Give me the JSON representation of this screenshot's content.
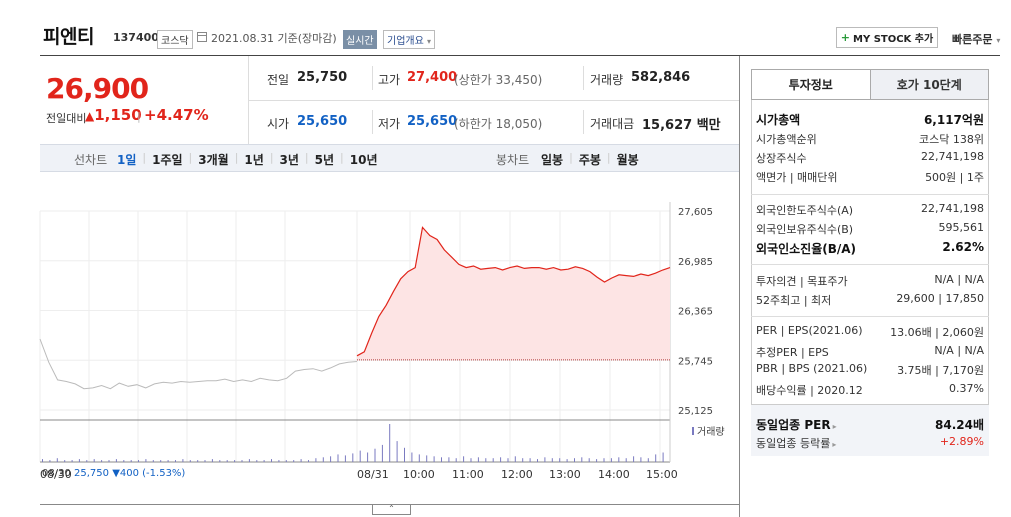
{
  "header": {
    "name": "피엔티",
    "code": "137400",
    "market": "코스닥",
    "date": "2021.08.31 기준(장마감)",
    "realtime": "실시간",
    "overview": "기업개요",
    "mystock": "MY STOCK 추가",
    "quick_order": "빠른주문"
  },
  "price": {
    "current": "26,900",
    "change_label": "전일대비",
    "change_abs": "1,150",
    "change_pct": "+4.47%"
  },
  "stats": {
    "prev_close_label": "전일",
    "prev_close": "25,750",
    "high_label": "고가",
    "high": "27,400",
    "upper_limit": "(상한가 33,450)",
    "volume_label": "거래량",
    "volume": "582,846",
    "open_label": "시가",
    "open": "25,650",
    "low_label": "저가",
    "low": "25,650",
    "lower_limit": "(하한가 18,050)",
    "amount_label": "거래대금",
    "amount": "15,627",
    "amount_unit": "백만"
  },
  "period_bar": {
    "line_label": "선차트",
    "periods": [
      "1일",
      "1주일",
      "3개월",
      "1년",
      "3년",
      "5년",
      "10년"
    ],
    "candle_label": "봉차트",
    "candles": [
      "일봉",
      "주봉",
      "월봉"
    ]
  },
  "chart_data": {
    "type": "line",
    "y_ticks": [
      "27,605",
      "26,985",
      "26,365",
      "25,745",
      "25,125"
    ],
    "ylim": [
      25125,
      27605
    ],
    "x_ticks": [
      "08/30",
      "08/31",
      "10:00",
      "11:00",
      "12:00",
      "13:00",
      "14:00",
      "15:00"
    ],
    "volume_label": "거래량",
    "prev_close": 25750,
    "colors": {
      "today": "#e1251b",
      "today_fill": "#fde4e4",
      "prev": "#bbbbbb",
      "volume": "#7a7ac0"
    },
    "prev_day": [
      26010,
      25720,
      25500,
      25480,
      25450,
      25390,
      25400,
      25430,
      25390,
      25460,
      25420,
      25440,
      25400,
      25450,
      25470,
      25460,
      25480,
      25470,
      25480,
      25490,
      25490,
      25510,
      25480,
      25500,
      25480,
      25520,
      25500,
      25490,
      25520,
      25610,
      25630,
      25640,
      25610,
      25650,
      25700,
      25720,
      25730
    ],
    "today": [
      25800,
      25850,
      26080,
      26290,
      26430,
      26600,
      26760,
      26850,
      26900,
      27400,
      27300,
      27250,
      27120,
      27030,
      26940,
      26900,
      26920,
      26880,
      26890,
      26900,
      26870,
      26900,
      26920,
      26890,
      26900,
      26900,
      26880,
      26900,
      26870,
      26880,
      26910,
      26890,
      26850,
      26780,
      26720,
      26770,
      26810,
      26800,
      26790,
      26820,
      26800,
      26830,
      26870,
      26900
    ],
    "volume_bars": [
      3,
      2,
      4,
      2,
      2,
      3,
      2,
      3,
      2,
      2,
      3,
      2,
      2,
      2,
      3,
      2,
      2,
      2,
      2,
      3,
      2,
      2,
      2,
      3,
      2,
      2,
      2,
      2,
      3,
      2,
      2,
      3,
      2,
      2,
      2,
      3,
      2,
      4,
      5,
      6,
      8,
      7,
      9,
      12,
      10,
      14,
      18,
      40,
      22,
      15,
      10,
      8,
      7,
      6,
      5,
      5,
      4,
      6,
      4,
      5,
      4,
      4,
      5,
      4,
      6,
      4,
      4,
      3,
      5,
      4,
      4,
      3,
      4,
      5,
      4,
      3,
      4,
      4,
      5,
      4,
      6,
      5,
      4,
      8,
      10
    ]
  },
  "footer": {
    "prev_date": "08/30",
    "prev_close": "25,750",
    "prev_change": "▼400 (-1.53%)"
  },
  "panel": {
    "tabs": [
      "투자정보",
      "호가 10단계"
    ],
    "rows": [
      {
        "k": "시가총액",
        "v": "6,117억원",
        "bold": true
      },
      {
        "k": "시가총액순위",
        "v": "코스닥 138위"
      },
      {
        "k": "상장주식수",
        "v": "22,741,198"
      },
      {
        "k": "액면가 | 매매단위",
        "v": "500원 | 1주"
      },
      {
        "k": "외국인한도주식수(A)",
        "v": "22,741,198"
      },
      {
        "k": "외국인보유주식수(B)",
        "v": "595,561"
      },
      {
        "k": "외국인소진율(B/A)",
        "v": "2.62%",
        "bold": true
      },
      {
        "k": "투자의견 | 목표주가",
        "v": "N/A | N/A"
      },
      {
        "k": "52주최고 | 최저",
        "v": "29,600 | 17,850"
      },
      {
        "k": "PER | EPS(2021.06)",
        "v": "13.06배 | 2,060원"
      },
      {
        "k": "추정PER | EPS",
        "v": "N/A | N/A"
      },
      {
        "k": "PBR | BPS (2021.06)",
        "v": "3.75배 | 7,170원"
      },
      {
        "k": "배당수익률 | 2020.12",
        "v": "0.37%"
      }
    ],
    "peer_per_label": "동일업종 PER",
    "peer_per": "84.24배",
    "peer_chg_label": "동일업종 등락률",
    "peer_chg": "+2.89%"
  }
}
